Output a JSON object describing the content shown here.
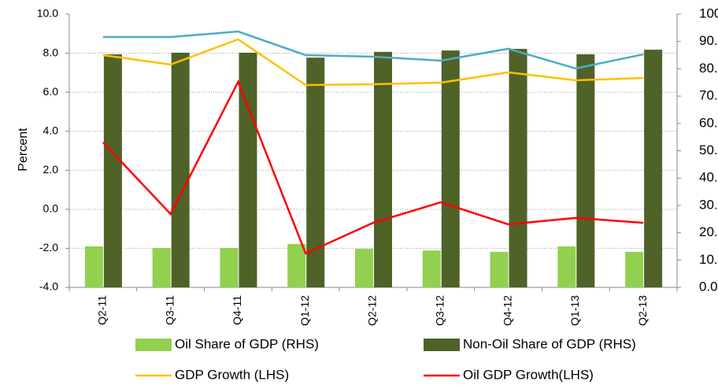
{
  "chart_data": {
    "type": "bar",
    "y_label": "Percent",
    "categories": [
      "Q2-11",
      "Q3-11",
      "Q4-11",
      "Q1-12",
      "Q2-12",
      "Q3-12",
      "Q4-12",
      "Q1-13",
      "Q2-13"
    ],
    "series": [
      {
        "name": "Oil Share of GDP (RHS)",
        "type": "bar",
        "axis": "y2",
        "color": "#92d050",
        "values": [
          15.0,
          14.4,
          14.4,
          15.9,
          14.1,
          13.5,
          13.0,
          15.0,
          13.0
        ]
      },
      {
        "name": "Non-Oil Share of GDP (RHS)",
        "type": "bar",
        "axis": "y2",
        "color": "#4f6228",
        "values": [
          85.3,
          85.9,
          85.9,
          84.1,
          86.2,
          86.7,
          87.3,
          85.3,
          87.0
        ]
      },
      {
        "name": "GDP Growth (LHS)",
        "type": "line",
        "color": "#ffc000",
        "values": [
          7.9,
          7.42,
          8.71,
          6.37,
          6.41,
          6.49,
          7.02,
          6.61,
          6.73
        ]
      },
      {
        "name": "Oil GDP Growth(LHS)",
        "type": "line",
        "color": "#ff0000",
        "values": [
          3.43,
          -0.24,
          6.53,
          -2.26,
          -0.69,
          0.36,
          -0.77,
          -0.44,
          -0.69
        ]
      },
      {
        "type": "line",
        "color": "#4bacc6",
        "values": [
          8.83,
          8.83,
          9.11,
          7.9,
          7.82,
          7.62,
          8.23,
          7.22,
          7.94
        ]
      }
    ],
    "ylim": [
      -4,
      10
    ],
    "yticks": [
      {
        "value": -4,
        "label": "-4.0"
      },
      {
        "value": -2,
        "label": "-2.0"
      },
      {
        "value": 0,
        "label": "0.0"
      },
      {
        "value": 2,
        "label": "2.0"
      },
      {
        "value": 4,
        "label": "4.0"
      },
      {
        "value": 6,
        "label": "6.0"
      },
      {
        "value": 8,
        "label": "8.0"
      },
      {
        "value": 10,
        "label": "10.0"
      }
    ],
    "y2lim": [
      0,
      100
    ],
    "y2ticks": [
      {
        "value": 0,
        "label": "0.0"
      },
      {
        "value": 10,
        "label": "10.0"
      },
      {
        "value": 20,
        "label": "20.0"
      },
      {
        "value": 30,
        "label": "30.0"
      },
      {
        "value": 40,
        "label": "40.0"
      },
      {
        "value": 50,
        "label": "50.0"
      },
      {
        "value": 60,
        "label": "60.0"
      },
      {
        "value": 70,
        "label": "70.0"
      },
      {
        "value": 80,
        "label": "80.0"
      },
      {
        "value": 90,
        "label": "90.0"
      },
      {
        "value": 100,
        "label": "100.0"
      }
    ],
    "grid": true
  }
}
